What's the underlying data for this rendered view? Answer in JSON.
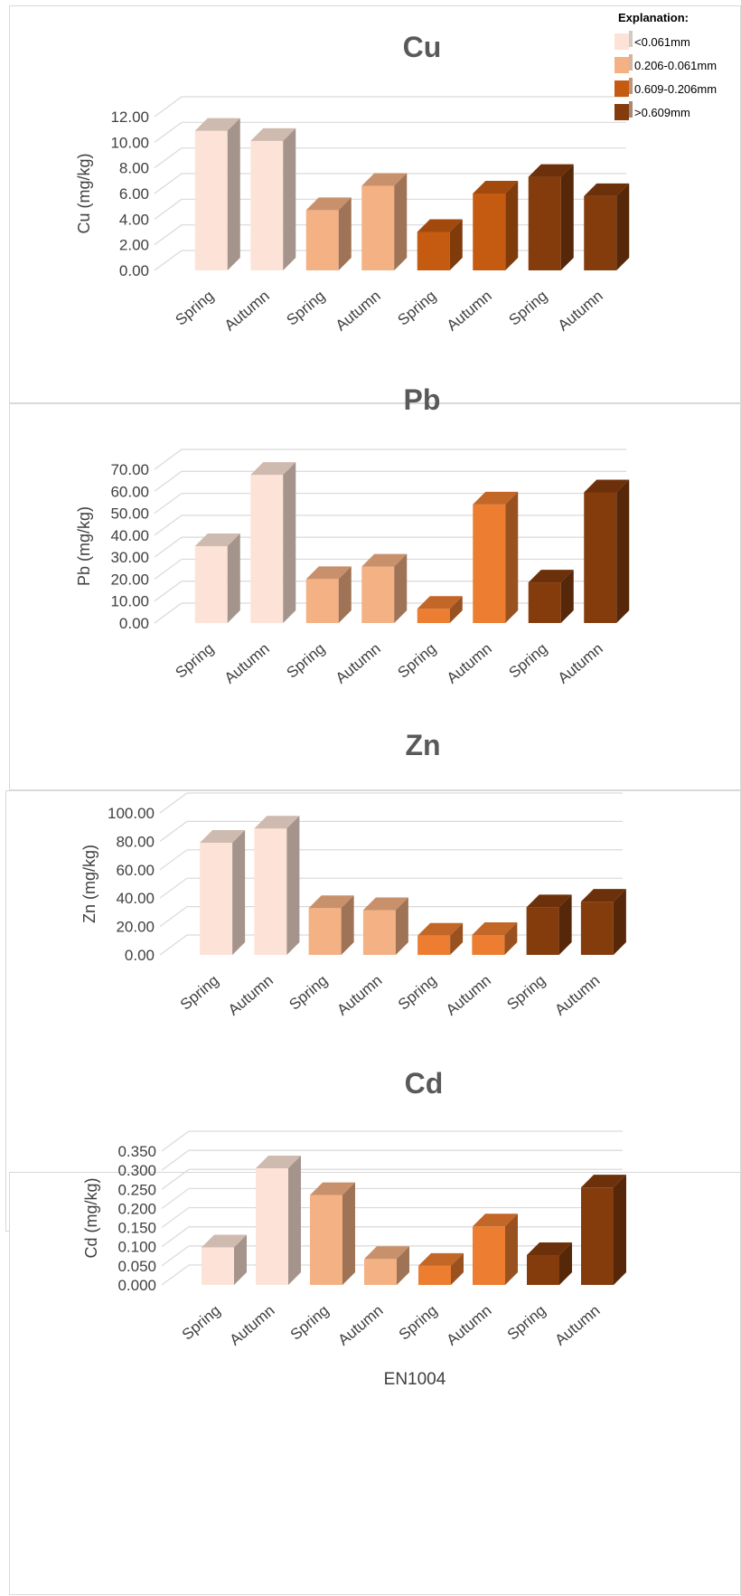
{
  "legend": {
    "title": "Explanation:",
    "items": [
      {
        "label": "<0.061mm",
        "color": "#fde3d7"
      },
      {
        "label": "0.206-0.061mm",
        "color": "#f4b183"
      },
      {
        "label": "0.609-0.206mm",
        "color": "#c55a11"
      },
      {
        "label": ">0.609mm",
        "color": "#843c0c"
      }
    ]
  },
  "chart_data": [
    {
      "type": "bar",
      "title": "Cu",
      "xlabel": "",
      "ylabel": "Cu (mg/kg)",
      "categories": [
        "Spring",
        "Autumn",
        "Spring",
        "Autumn",
        "Spring",
        "Autumn",
        "Spring",
        "Autumn"
      ],
      "values": [
        10.9,
        10.1,
        4.7,
        6.6,
        3.0,
        6.0,
        7.3,
        5.8
      ],
      "colors": [
        "#fde3d7",
        "#fde3d7",
        "#f4b183",
        "#f4b183",
        "#c55a11",
        "#c55a11",
        "#843c0c",
        "#843c0c"
      ],
      "yticks": [
        "0.00",
        "2.00",
        "4.00",
        "6.00",
        "8.00",
        "10.00",
        "12.00"
      ],
      "ylim": [
        0,
        12
      ],
      "grid": true
    },
    {
      "type": "bar",
      "title": "Pb",
      "xlabel": "",
      "ylabel": "Pb  (mg/kg)",
      "categories": [
        "Spring",
        "Autumn",
        "Spring",
        "Autumn",
        "Spring",
        "Autumn",
        "Spring",
        "Autumn"
      ],
      "values": [
        35.0,
        67.5,
        20.0,
        25.7,
        6.5,
        54.0,
        18.5,
        59.5
      ],
      "colors": [
        "#fde3d7",
        "#fde3d7",
        "#f4b183",
        "#f4b183",
        "#ed7d31",
        "#ed7d31",
        "#843c0c",
        "#843c0c"
      ],
      "yticks": [
        "0.00",
        "10.00",
        "20.00",
        "30.00",
        "40.00",
        "50.00",
        "60.00",
        "70.00"
      ],
      "ylim": [
        0,
        70
      ],
      "grid": true
    },
    {
      "type": "bar",
      "title": "Zn",
      "xlabel": "",
      "ylabel": "Zn  (mg/kg)",
      "categories": [
        "Spring",
        "Autumn",
        "Spring",
        "Autumn",
        "Spring",
        "Autumn",
        "Spring",
        "Autumn"
      ],
      "values": [
        79.0,
        89.0,
        33.0,
        31.5,
        13.5,
        14.0,
        33.5,
        37.5
      ],
      "colors": [
        "#fde3d7",
        "#fde3d7",
        "#f4b183",
        "#f4b183",
        "#ed7d31",
        "#ed7d31",
        "#843c0c",
        "#843c0c"
      ],
      "yticks": [
        "0.00",
        "20.00",
        "40.00",
        "60.00",
        "80.00",
        "100.00"
      ],
      "ylim": [
        0,
        100
      ],
      "grid": true
    },
    {
      "type": "bar",
      "title": "Cd",
      "xlabel": "EN1004",
      "ylabel": "Cd (mg/kg)",
      "categories": [
        "Spring",
        "Autumn",
        "Spring",
        "Autumn",
        "Spring",
        "Autumn",
        "Spring",
        "Autumn"
      ],
      "values": [
        0.098,
        0.305,
        0.235,
        0.068,
        0.05,
        0.153,
        0.078,
        0.255
      ],
      "colors": [
        "#fde3d7",
        "#fde3d7",
        "#f4b183",
        "#f4b183",
        "#ed7d31",
        "#ed7d31",
        "#843c0c",
        "#843c0c"
      ],
      "yticks": [
        "0.000",
        "0.050",
        "0.100",
        "0.150",
        "0.200",
        "0.250",
        "0.300",
        "0.350"
      ],
      "ylim": [
        0,
        0.35
      ],
      "grid": true
    }
  ]
}
